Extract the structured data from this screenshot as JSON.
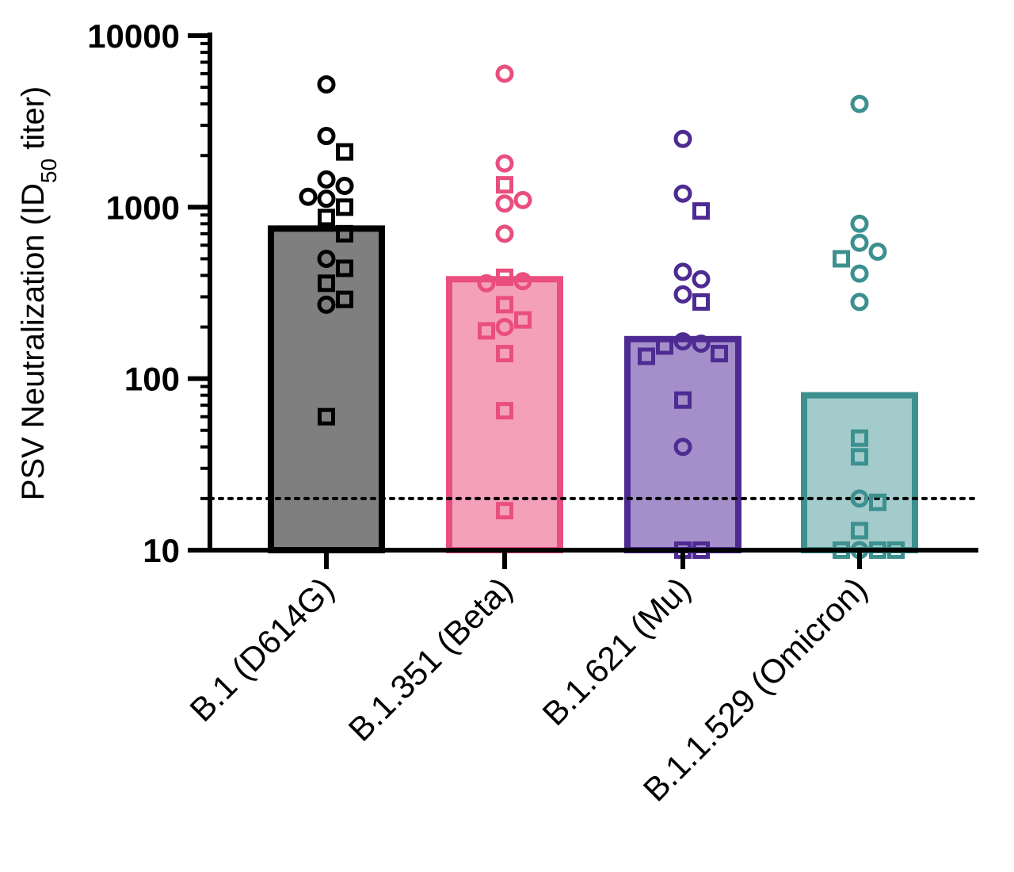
{
  "chart_data": {
    "type": "bar",
    "scale": "log",
    "ylim": [
      10,
      10000
    ],
    "y_ticks": [
      "10",
      "100",
      "1000",
      "10000"
    ],
    "ylabel": {
      "prefix": "PSV Neutralization (ID",
      "subscript": "50",
      "suffix": " titer)"
    },
    "xlabel": "",
    "grid": false,
    "reference_line": {
      "value": 20,
      "style": "dotted"
    },
    "categories": [
      "B.1 (D614G)",
      "B.1.351 (Beta)",
      "B.1.621 (Mu)",
      "B.1.1.529 (Omicron)"
    ],
    "series": [
      {
        "category": "B.1 (D614G)",
        "bar_value": 750,
        "color": "#000000",
        "fill": "#7f7f7f",
        "circles": [
          5200,
          2600,
          1450,
          1150,
          1330,
          1120,
          500,
          270
        ],
        "squares": [
          2100,
          870,
          1000,
          700,
          440,
          360,
          290,
          60
        ]
      },
      {
        "category": "B.1.351 (Beta)",
        "bar_value": 380,
        "color": "#ea4e7f",
        "fill": "#f4a0bb",
        "circles": [
          6000,
          1800,
          1100,
          1050,
          700,
          370,
          360,
          200
        ],
        "squares": [
          1350,
          390,
          270,
          220,
          190,
          140,
          65,
          17
        ]
      },
      {
        "category": "B.1.621 (Mu)",
        "bar_value": 170,
        "color": "#4e2b92",
        "fill": "#a48fca",
        "circles": [
          2500,
          1200,
          420,
          380,
          310,
          165,
          160,
          40
        ],
        "squares": [
          950,
          280,
          155,
          140,
          135,
          75,
          10,
          10
        ]
      },
      {
        "category": "B.1.1.529 (Omicron)",
        "bar_value": 80,
        "color": "#3c9090",
        "fill": "#a3cbcb",
        "circles": [
          4000,
          800,
          620,
          550,
          410,
          280,
          20,
          10
        ],
        "squares": [
          500,
          45,
          35,
          19,
          13,
          10,
          10,
          10
        ]
      }
    ]
  }
}
